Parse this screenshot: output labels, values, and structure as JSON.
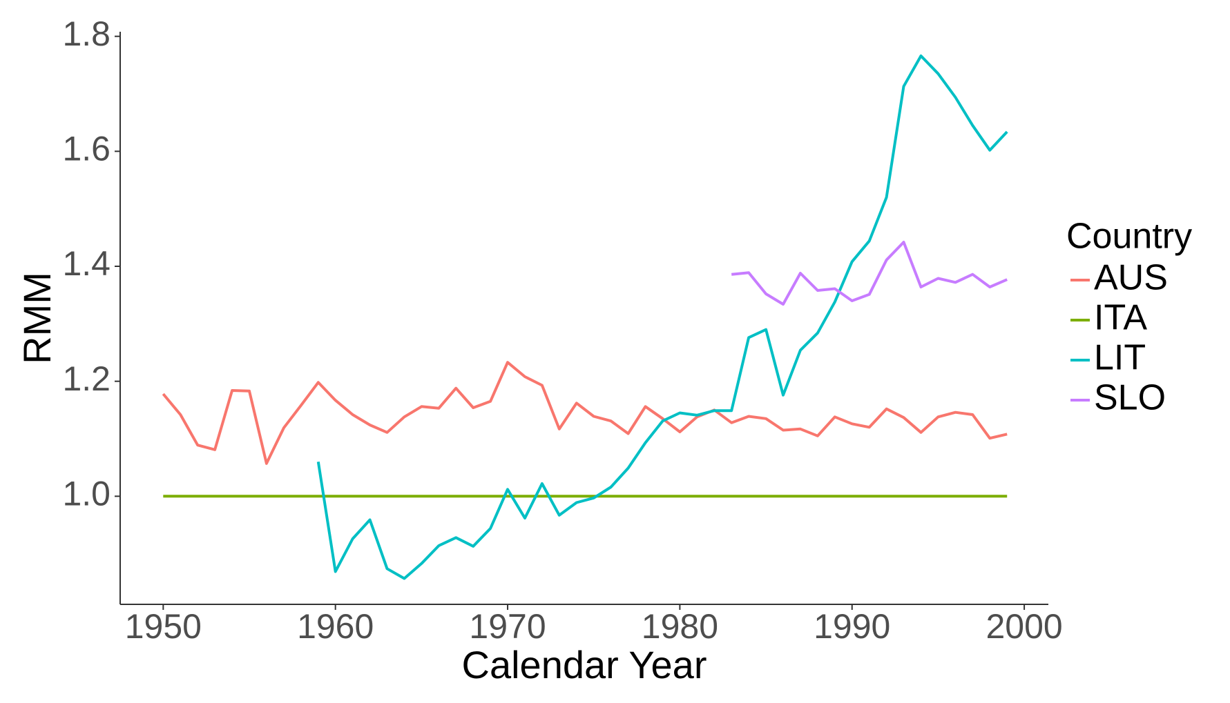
{
  "chart_data": {
    "type": "line",
    "x_label": "Calendar Year",
    "y_label": "RMM",
    "legend_title": "Country",
    "x": [
      1950,
      1951,
      1952,
      1953,
      1954,
      1955,
      1956,
      1957,
      1958,
      1959,
      1960,
      1961,
      1962,
      1963,
      1964,
      1965,
      1966,
      1967,
      1968,
      1969,
      1970,
      1971,
      1972,
      1973,
      1974,
      1975,
      1976,
      1977,
      1978,
      1979,
      1980,
      1981,
      1982,
      1983,
      1984,
      1985,
      1986,
      1987,
      1988,
      1989,
      1990,
      1991,
      1992,
      1993,
      1994,
      1995,
      1996,
      1997,
      1998,
      1999
    ],
    "series": [
      {
        "name": "AUS",
        "color": "#F8766D",
        "values": [
          1.178,
          1.142,
          1.089,
          1.081,
          1.184,
          1.183,
          1.057,
          1.119,
          1.158,
          1.198,
          1.167,
          1.142,
          1.124,
          1.111,
          1.138,
          1.156,
          1.153,
          1.188,
          1.154,
          1.165,
          1.233,
          1.208,
          1.193,
          1.117,
          1.162,
          1.139,
          1.131,
          1.109,
          1.156,
          1.135,
          1.112,
          1.138,
          1.15,
          1.128,
          1.139,
          1.135,
          1.115,
          1.117,
          1.105,
          1.138,
          1.126,
          1.12,
          1.152,
          1.137,
          1.111,
          1.138,
          1.146,
          1.142,
          1.101,
          1.108
        ]
      },
      {
        "name": "ITA",
        "color": "#7CAE00",
        "values": [
          1,
          1,
          1,
          1,
          1,
          1,
          1,
          1,
          1,
          1,
          1,
          1,
          1,
          1,
          1,
          1,
          1,
          1,
          1,
          1,
          1,
          1,
          1,
          1,
          1,
          1,
          1,
          1,
          1,
          1,
          1,
          1,
          1,
          1,
          1,
          1,
          1,
          1,
          1,
          1,
          1,
          1,
          1,
          1,
          1,
          1,
          1,
          1,
          1,
          1
        ]
      },
      {
        "name": "LIT",
        "color": "#00BFC4",
        "values": [
          null,
          null,
          null,
          null,
          null,
          null,
          null,
          null,
          null,
          1.06,
          0.869,
          0.926,
          0.959,
          0.874,
          0.857,
          0.883,
          0.914,
          0.928,
          0.913,
          0.944,
          1.012,
          0.962,
          1.022,
          0.967,
          0.989,
          0.997,
          1.016,
          1.049,
          1.093,
          1.131,
          1.145,
          1.141,
          1.149,
          1.149,
          1.276,
          1.29,
          1.176,
          1.254,
          1.284,
          1.338,
          1.408,
          1.444,
          1.52,
          1.713,
          1.766,
          1.735,
          1.694,
          1.645,
          1.602,
          1.634
        ]
      },
      {
        "name": "SLO",
        "color": "#C77CFF",
        "values": [
          null,
          null,
          null,
          null,
          null,
          null,
          null,
          null,
          null,
          null,
          null,
          null,
          null,
          null,
          null,
          null,
          null,
          null,
          null,
          null,
          null,
          null,
          null,
          null,
          null,
          null,
          null,
          null,
          null,
          null,
          null,
          null,
          null,
          1.386,
          1.389,
          1.352,
          1.334,
          1.388,
          1.358,
          1.361,
          1.34,
          1.351,
          1.411,
          1.442,
          1.364,
          1.379,
          1.372,
          1.386,
          1.364,
          1.377
        ]
      }
    ],
    "xlim": [
      1947.5,
      2001.4
    ],
    "xticks": [
      1950,
      1960,
      1970,
      1980,
      1990,
      2000
    ],
    "ylim": [
      0.812,
      1.808
    ],
    "yticks": [
      {
        "value": 1,
        "label": "1.0"
      },
      1.2,
      1.4,
      1.6,
      1.8
    ],
    "grid": false
  }
}
